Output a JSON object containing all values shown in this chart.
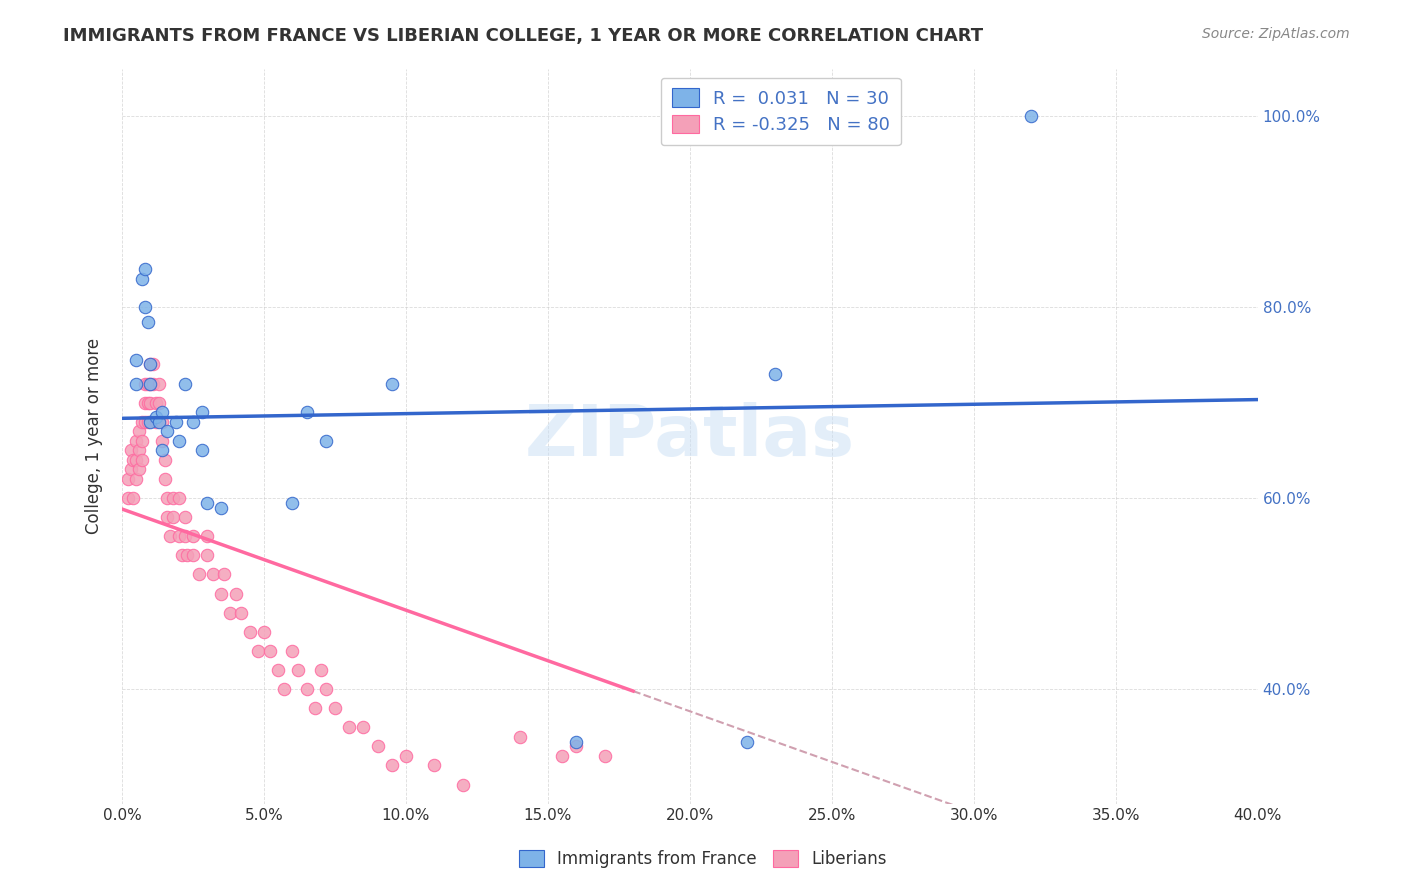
{
  "title": "IMMIGRANTS FROM FRANCE VS LIBERIAN COLLEGE, 1 YEAR OR MORE CORRELATION CHART",
  "source": "Source: ZipAtlas.com",
  "ylabel": "College, 1 year or more",
  "legend_r1": "R =  0.031   N = 30",
  "legend_r2": "R = -0.325   N = 80",
  "france_color": "#7EB3E8",
  "liberia_color": "#F4A0B8",
  "france_line_color": "#3366CC",
  "liberia_line_color": "#FF69A0",
  "liberia_dash_color": "#D0A0B0",
  "background_color": "#FFFFFF",
  "xlim": [
    0.0,
    0.4
  ],
  "ylim": [
    0.28,
    1.05
  ],
  "france_x": [
    0.005,
    0.005,
    0.007,
    0.008,
    0.008,
    0.009,
    0.01,
    0.01,
    0.01,
    0.012,
    0.013,
    0.014,
    0.014,
    0.016,
    0.019,
    0.02,
    0.022,
    0.025,
    0.028,
    0.028,
    0.03,
    0.035,
    0.06,
    0.065,
    0.072,
    0.095,
    0.16,
    0.22,
    0.23,
    0.32
  ],
  "france_y": [
    0.745,
    0.72,
    0.83,
    0.84,
    0.8,
    0.785,
    0.74,
    0.72,
    0.68,
    0.685,
    0.68,
    0.69,
    0.65,
    0.67,
    0.68,
    0.66,
    0.72,
    0.68,
    0.69,
    0.65,
    0.595,
    0.59,
    0.595,
    0.69,
    0.66,
    0.72,
    0.345,
    0.345,
    0.73,
    1.0
  ],
  "liberia_x": [
    0.002,
    0.002,
    0.003,
    0.003,
    0.004,
    0.004,
    0.005,
    0.005,
    0.005,
    0.006,
    0.006,
    0.006,
    0.007,
    0.007,
    0.007,
    0.008,
    0.008,
    0.008,
    0.009,
    0.009,
    0.009,
    0.01,
    0.01,
    0.01,
    0.011,
    0.011,
    0.012,
    0.012,
    0.013,
    0.013,
    0.014,
    0.014,
    0.015,
    0.015,
    0.016,
    0.016,
    0.017,
    0.018,
    0.018,
    0.02,
    0.02,
    0.021,
    0.022,
    0.022,
    0.023,
    0.025,
    0.025,
    0.027,
    0.03,
    0.03,
    0.032,
    0.035,
    0.036,
    0.038,
    0.04,
    0.042,
    0.045,
    0.048,
    0.05,
    0.052,
    0.055,
    0.057,
    0.06,
    0.062,
    0.065,
    0.068,
    0.07,
    0.072,
    0.075,
    0.08,
    0.085,
    0.09,
    0.095,
    0.1,
    0.11,
    0.12,
    0.14,
    0.155,
    0.16,
    0.17
  ],
  "liberia_y": [
    0.62,
    0.6,
    0.65,
    0.63,
    0.64,
    0.6,
    0.66,
    0.64,
    0.62,
    0.67,
    0.65,
    0.63,
    0.68,
    0.66,
    0.64,
    0.72,
    0.7,
    0.68,
    0.72,
    0.7,
    0.68,
    0.74,
    0.72,
    0.7,
    0.74,
    0.72,
    0.7,
    0.68,
    0.72,
    0.7,
    0.68,
    0.66,
    0.64,
    0.62,
    0.6,
    0.58,
    0.56,
    0.6,
    0.58,
    0.6,
    0.56,
    0.54,
    0.58,
    0.56,
    0.54,
    0.56,
    0.54,
    0.52,
    0.56,
    0.54,
    0.52,
    0.5,
    0.52,
    0.48,
    0.5,
    0.48,
    0.46,
    0.44,
    0.46,
    0.44,
    0.42,
    0.4,
    0.44,
    0.42,
    0.4,
    0.38,
    0.42,
    0.4,
    0.38,
    0.36,
    0.36,
    0.34,
    0.32,
    0.33,
    0.32,
    0.3,
    0.35,
    0.33,
    0.34,
    0.33
  ]
}
